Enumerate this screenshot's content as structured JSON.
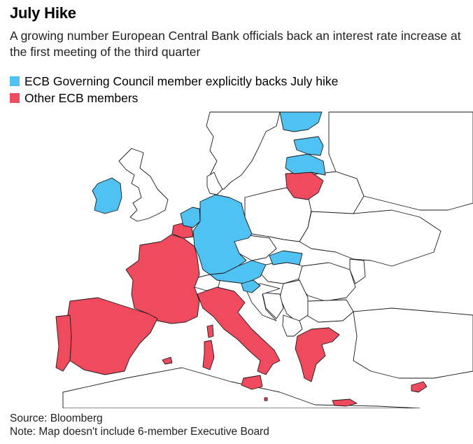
{
  "header": {
    "title": "July Hike",
    "subtitle": "A growing number European Central Bank officials back an interest rate increase at the first meeting of the third quarter"
  },
  "legend": {
    "items": [
      {
        "label": "ECB Governing Council member explicitly backs July hike",
        "color": "#4fc1f2"
      },
      {
        "label": "Other ECB members",
        "color": "#f04a5f"
      }
    ]
  },
  "map": {
    "backs_july_hike": [
      "Ireland",
      "Netherlands",
      "Germany",
      "Austria",
      "Slovakia",
      "Slovenia",
      "Latvia",
      "Estonia",
      "Finland"
    ],
    "other_ecb_members": [
      "France",
      "Spain",
      "Portugal",
      "Italy",
      "Greece",
      "Lithuania",
      "Cyprus",
      "Malta",
      "Belgium",
      "Luxembourg"
    ],
    "colors": {
      "backs": "#4fc1f2",
      "other": "#f04a5f",
      "non_member": "#ffffff",
      "border": "#1a1a1a"
    }
  },
  "footer": {
    "source": "Source: Bloomberg",
    "note": "Note: Map doesn't include 6-member Executive Board"
  }
}
